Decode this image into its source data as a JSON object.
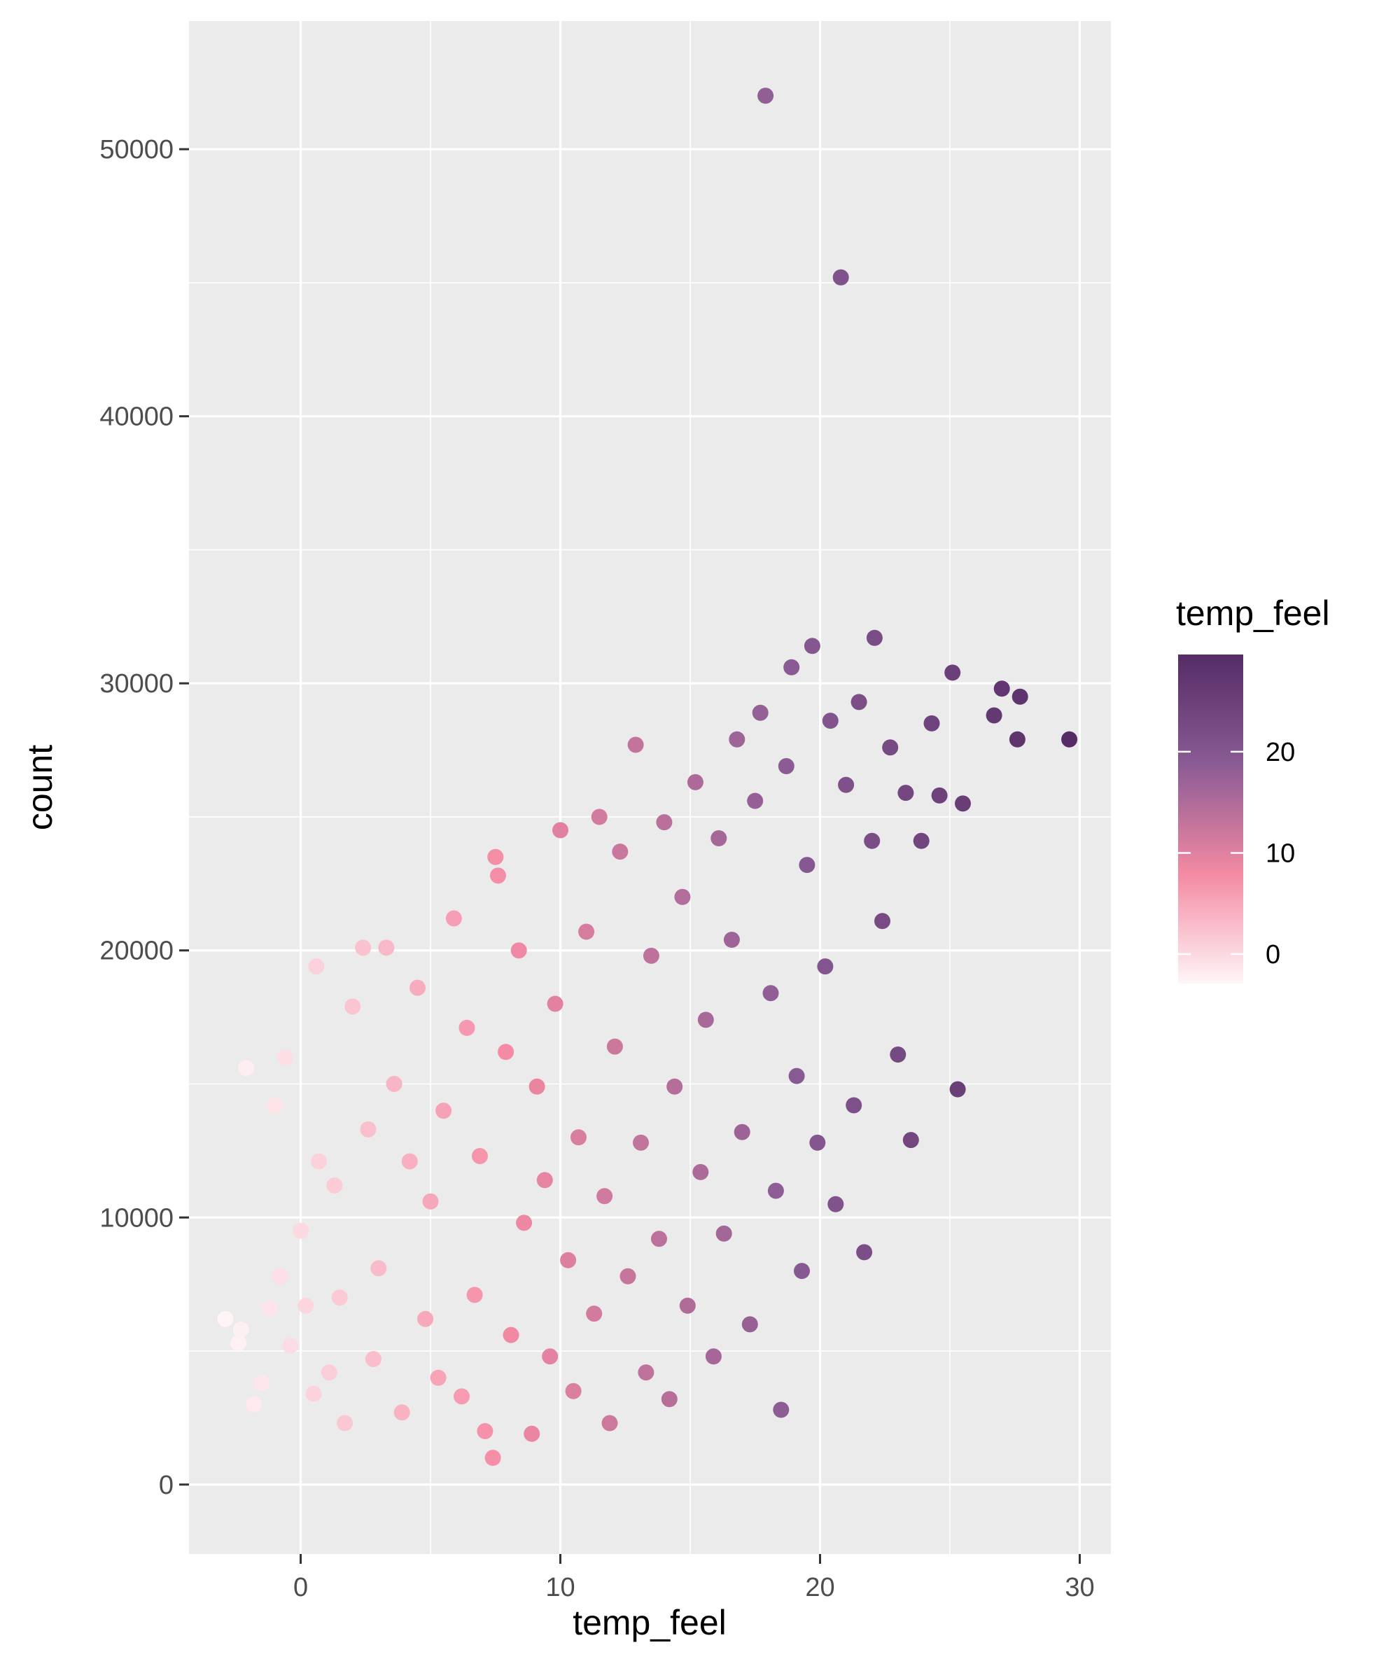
{
  "chart_data": {
    "type": "scatter",
    "title": "",
    "xlabel": "temp_feel",
    "ylabel": "count",
    "xlim": [
      -4.3,
      31.2
    ],
    "ylim": [
      -2600,
      54800
    ],
    "x_ticks": [
      0,
      10,
      20,
      30
    ],
    "y_ticks": [
      0,
      10000,
      20000,
      30000,
      40000,
      50000
    ],
    "grid": true,
    "color_scale": {
      "variable": "temp_feel",
      "title": "temp_feel",
      "range": [
        -2.9,
        29.6
      ],
      "ticks": [
        0,
        10,
        20
      ],
      "stops": [
        "#fff5f7",
        "#f48aa3",
        "#8a5b94",
        "#552c66"
      ]
    },
    "legend_position": "right",
    "points": [
      [
        -2.9,
        6200
      ],
      [
        -2.4,
        5300
      ],
      [
        -2.3,
        5800
      ],
      [
        -2.1,
        15600
      ],
      [
        -1.8,
        3000
      ],
      [
        -1.5,
        3800
      ],
      [
        -1.2,
        6600
      ],
      [
        -1.0,
        14200
      ],
      [
        -0.8,
        7800
      ],
      [
        -0.6,
        16000
      ],
      [
        -0.4,
        5200
      ],
      [
        0.0,
        9500
      ],
      [
        0.2,
        6700
      ],
      [
        0.5,
        3400
      ],
      [
        0.6,
        19400
      ],
      [
        0.7,
        12100
      ],
      [
        1.1,
        4200
      ],
      [
        1.3,
        11200
      ],
      [
        1.5,
        7000
      ],
      [
        1.7,
        2300
      ],
      [
        2.0,
        17900
      ],
      [
        2.4,
        20100
      ],
      [
        2.6,
        13300
      ],
      [
        2.8,
        4700
      ],
      [
        3.0,
        8100
      ],
      [
        3.3,
        20100
      ],
      [
        3.6,
        15000
      ],
      [
        3.9,
        2700
      ],
      [
        4.2,
        12100
      ],
      [
        4.5,
        18600
      ],
      [
        4.8,
        6200
      ],
      [
        5.0,
        10600
      ],
      [
        5.3,
        4000
      ],
      [
        5.5,
        14000
      ],
      [
        5.9,
        21200
      ],
      [
        6.2,
        3300
      ],
      [
        6.4,
        17100
      ],
      [
        6.7,
        7100
      ],
      [
        6.9,
        12300
      ],
      [
        7.1,
        2000
      ],
      [
        7.4,
        1000
      ],
      [
        7.5,
        23500
      ],
      [
        7.6,
        22800
      ],
      [
        7.9,
        16200
      ],
      [
        8.1,
        5600
      ],
      [
        8.4,
        20000
      ],
      [
        8.6,
        9800
      ],
      [
        8.9,
        1900
      ],
      [
        9.1,
        14900
      ],
      [
        9.4,
        11400
      ],
      [
        9.6,
        4800
      ],
      [
        9.8,
        18000
      ],
      [
        10.0,
        24500
      ],
      [
        10.3,
        8400
      ],
      [
        10.5,
        3500
      ],
      [
        10.7,
        13000
      ],
      [
        11.0,
        20700
      ],
      [
        11.3,
        6400
      ],
      [
        11.5,
        25000
      ],
      [
        11.7,
        10800
      ],
      [
        11.9,
        2300
      ],
      [
        12.1,
        16400
      ],
      [
        12.3,
        23700
      ],
      [
        12.6,
        7800
      ],
      [
        12.9,
        27700
      ],
      [
        13.1,
        12800
      ],
      [
        13.3,
        4200
      ],
      [
        13.5,
        19800
      ],
      [
        13.8,
        9200
      ],
      [
        14.0,
        24800
      ],
      [
        14.2,
        3200
      ],
      [
        14.4,
        14900
      ],
      [
        14.7,
        22000
      ],
      [
        14.9,
        6700
      ],
      [
        15.2,
        26300
      ],
      [
        15.4,
        11700
      ],
      [
        15.6,
        17400
      ],
      [
        15.9,
        4800
      ],
      [
        16.1,
        24200
      ],
      [
        16.3,
        9400
      ],
      [
        16.6,
        20400
      ],
      [
        16.8,
        27900
      ],
      [
        17.0,
        13200
      ],
      [
        17.3,
        6000
      ],
      [
        17.5,
        25600
      ],
      [
        17.7,
        28900
      ],
      [
        17.9,
        52000
      ],
      [
        18.1,
        18400
      ],
      [
        18.3,
        11000
      ],
      [
        18.5,
        2800
      ],
      [
        18.7,
        26900
      ],
      [
        18.9,
        30600
      ],
      [
        19.1,
        15300
      ],
      [
        19.3,
        8000
      ],
      [
        19.5,
        23200
      ],
      [
        19.7,
        31400
      ],
      [
        19.9,
        12800
      ],
      [
        20.2,
        19400
      ],
      [
        20.4,
        28600
      ],
      [
        20.6,
        10500
      ],
      [
        20.8,
        45200
      ],
      [
        21.0,
        26200
      ],
      [
        21.3,
        14200
      ],
      [
        21.5,
        29300
      ],
      [
        21.7,
        8700
      ],
      [
        22.0,
        24100
      ],
      [
        22.1,
        31700
      ],
      [
        22.4,
        21100
      ],
      [
        22.7,
        27600
      ],
      [
        23.0,
        16100
      ],
      [
        23.3,
        25900
      ],
      [
        23.5,
        12900
      ],
      [
        23.9,
        24100
      ],
      [
        24.3,
        28500
      ],
      [
        24.6,
        25800
      ],
      [
        25.1,
        30400
      ],
      [
        25.3,
        14800
      ],
      [
        25.5,
        25500
      ],
      [
        26.7,
        28800
      ],
      [
        27.0,
        29800
      ],
      [
        27.6,
        27900
      ],
      [
        27.7,
        29500
      ],
      [
        29.6,
        27900
      ]
    ]
  }
}
